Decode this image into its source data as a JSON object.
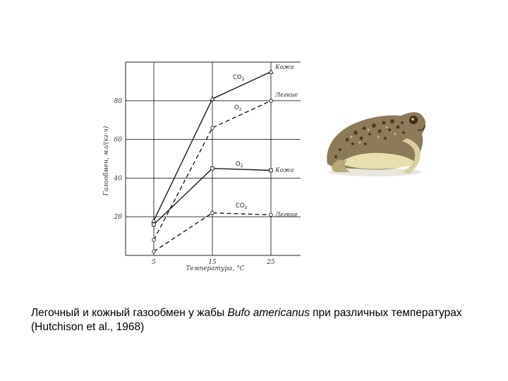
{
  "chart_data": {
    "type": "line",
    "xlabel": "Температура, °С",
    "ylabel": "Газообмен, мл/(кг·ч)",
    "x_ticks": [
      5,
      15,
      25
    ],
    "x_tick_labels": [
      "5",
      "15",
      "25"
    ],
    "y_ticks": [
      20,
      40,
      60,
      80
    ],
    "y_tick_labels": [
      "20",
      "40",
      "60",
      "80"
    ],
    "xlim": [
      5,
      25
    ],
    "ylim": [
      0,
      100
    ],
    "grid": true,
    "series": [
      {
        "name": "Кожа",
        "gas": "CO",
        "gas_sub": "2",
        "style": "solid",
        "marker": "triangle",
        "x": [
          5,
          15,
          25
        ],
        "y": [
          18,
          81,
          95
        ]
      },
      {
        "name": "Легкие",
        "gas": "O",
        "gas_sub": "2",
        "style": "dashed",
        "marker": "circle",
        "x": [
          5,
          15,
          25
        ],
        "y": [
          8,
          66,
          80
        ]
      },
      {
        "name": "Кожа",
        "gas": "O",
        "gas_sub": "2",
        "style": "solid",
        "marker": "square",
        "x": [
          5,
          15,
          25
        ],
        "y": [
          16,
          45,
          44
        ]
      },
      {
        "name": "Легкие",
        "gas": "CO",
        "gas_sub": "2",
        "style": "dashed",
        "marker": "circle",
        "x": [
          5,
          15,
          25
        ],
        "y": [
          2,
          22,
          21
        ]
      }
    ]
  },
  "caption": {
    "part1": "Легочный и кожный газообмен у жабы ",
    "species": "Bufo americanus",
    "part2": " при различных температурах  (Hutchison et al., 1968)"
  },
  "colors": {
    "line": "#1a1a1a",
    "grid": "#222222",
    "frog_body": "#9b8a6a",
    "frog_belly": "#ece3b6"
  },
  "icons": {
    "illustration": "toad-icon"
  }
}
